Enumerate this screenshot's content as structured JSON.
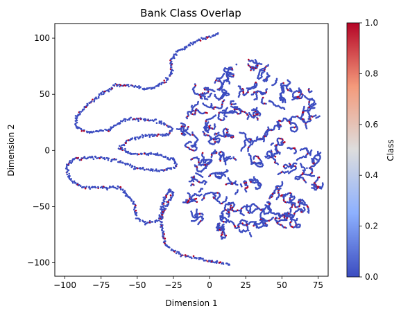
{
  "chart_data": {
    "type": "scatter",
    "title": "Bank Class Overlap",
    "xlabel": "Dimension 1",
    "ylabel": "Dimension 2",
    "xlim": [
      -107,
      82
    ],
    "ylim": [
      -112,
      113
    ],
    "xticks": [
      -100,
      -75,
      -50,
      -25,
      0,
      25,
      50,
      75
    ],
    "xtick_labels": [
      "−100",
      "−75",
      "−50",
      "−25",
      "0",
      "25",
      "50",
      "75"
    ],
    "yticks": [
      -100,
      -50,
      0,
      50,
      100
    ],
    "ytick_labels": [
      "−100",
      "−50",
      "0",
      "50",
      "100"
    ],
    "grid": false,
    "colormap": "coolwarm",
    "colors": {
      "low": "#3b4cc0",
      "mid": "#dddddd",
      "high": "#b40426"
    },
    "colorbar": {
      "label": "Class",
      "range": [
        0,
        1
      ],
      "ticks": [
        0.0,
        0.2,
        0.4,
        0.6,
        0.8,
        1.0
      ],
      "tick_labels": [
        "0.0",
        "0.2",
        "0.4",
        "0.6",
        "0.8",
        "1.0"
      ]
    },
    "structures": {
      "curve_1": [
        [
          6,
          104
        ],
        [
          -10,
          97
        ],
        [
          -22,
          88
        ],
        [
          -27,
          80
        ],
        [
          -26,
          70
        ],
        [
          -30,
          62
        ],
        [
          -38,
          56
        ],
        [
          -45,
          55
        ],
        [
          -55,
          58
        ],
        [
          -65,
          58
        ],
        [
          -75,
          50
        ],
        [
          -85,
          40
        ],
        [
          -92,
          30
        ],
        [
          -93,
          22
        ],
        [
          -85,
          16
        ],
        [
          -70,
          18
        ],
        [
          -58,
          28
        ],
        [
          -48,
          28
        ],
        [
          -35,
          26
        ],
        [
          -26,
          20
        ],
        [
          -28,
          14
        ],
        [
          -45,
          13
        ],
        [
          -57,
          9
        ],
        [
          -62,
          2
        ],
        [
          -55,
          -3
        ],
        [
          -38,
          -3
        ],
        [
          -25,
          -8
        ],
        [
          -23,
          -15
        ],
        [
          -33,
          -18
        ],
        [
          -50,
          -16
        ],
        [
          -65,
          -8
        ],
        [
          -80,
          -6
        ],
        [
          -95,
          -8
        ],
        [
          -99,
          -15
        ],
        [
          -97,
          -25
        ],
        [
          -88,
          -33
        ],
        [
          -75,
          -33
        ],
        [
          -62,
          -33
        ],
        [
          -53,
          -45
        ],
        [
          -50,
          -60
        ],
        [
          -44,
          -65
        ],
        [
          -35,
          -62
        ],
        [
          -30,
          -50
        ],
        [
          -25,
          -38
        ],
        [
          -28,
          -35
        ],
        [
          -33,
          -50
        ],
        [
          -33,
          -70
        ],
        [
          -30,
          -85
        ],
        [
          -20,
          -93
        ],
        [
          -5,
          -97
        ],
        [
          15,
          -102
        ]
      ],
      "blob_centers": [
        [
          -5,
          52
        ],
        [
          5,
          62
        ],
        [
          15,
          68
        ],
        [
          28,
          73
        ],
        [
          40,
          70
        ],
        [
          52,
          60
        ],
        [
          62,
          52
        ],
        [
          -10,
          35
        ],
        [
          2,
          42
        ],
        [
          12,
          48
        ],
        [
          25,
          55
        ],
        [
          38,
          50
        ],
        [
          50,
          42
        ],
        [
          65,
          40
        ],
        [
          -15,
          22
        ],
        [
          0,
          25
        ],
        [
          10,
          30
        ],
        [
          22,
          35
        ],
        [
          35,
          30
        ],
        [
          48,
          25
        ],
        [
          60,
          22
        ],
        [
          68,
          28
        ],
        [
          -12,
          8
        ],
        [
          0,
          10
        ],
        [
          12,
          12
        ],
        [
          25,
          8
        ],
        [
          38,
          12
        ],
        [
          50,
          5
        ],
        [
          62,
          0
        ],
        [
          70,
          -8
        ],
        [
          -10,
          -12
        ],
        [
          2,
          -8
        ],
        [
          15,
          -5
        ],
        [
          28,
          -12
        ],
        [
          40,
          -8
        ],
        [
          55,
          -18
        ],
        [
          65,
          -20
        ],
        [
          -5,
          -28
        ],
        [
          8,
          -25
        ],
        [
          20,
          -30
        ],
        [
          32,
          -32
        ],
        [
          45,
          -35
        ],
        [
          58,
          -40
        ],
        [
          70,
          -30
        ],
        [
          -10,
          -45
        ],
        [
          3,
          -42
        ],
        [
          15,
          -48
        ],
        [
          28,
          -50
        ],
        [
          42,
          -50
        ],
        [
          55,
          -55
        ],
        [
          65,
          -48
        ],
        [
          -5,
          -58
        ],
        [
          8,
          -62
        ],
        [
          20,
          -66
        ],
        [
          35,
          -60
        ],
        [
          48,
          -62
        ],
        [
          60,
          -60
        ],
        [
          10,
          -70
        ],
        [
          30,
          -68
        ]
      ]
    }
  }
}
